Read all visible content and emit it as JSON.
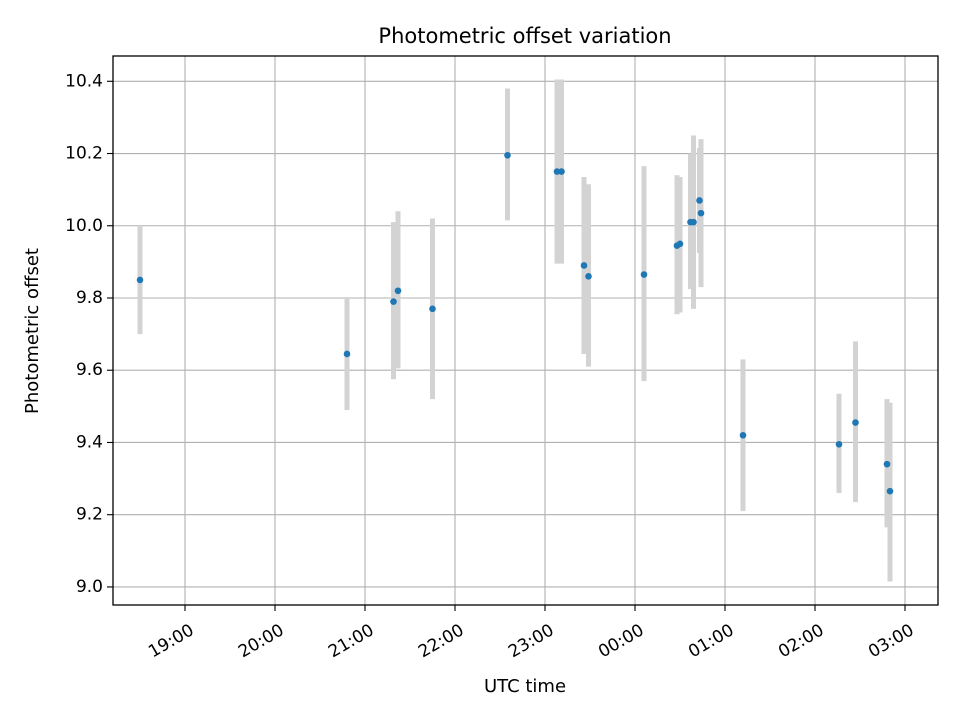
{
  "chart_data": {
    "type": "scatter",
    "title": "Photometric offset variation",
    "xlabel": "UTC time",
    "ylabel": "Photometric offset",
    "grid": true,
    "x_axis": {
      "ticks": [
        "19:00",
        "20:00",
        "21:00",
        "22:00",
        "23:00",
        "00:00",
        "01:00",
        "02:00",
        "03:00"
      ],
      "range": [
        "18:12",
        "03:22"
      ]
    },
    "y_axis": {
      "ticks": [
        "9.0",
        "9.2",
        "9.4",
        "9.6",
        "9.8",
        "10.0",
        "10.2",
        "10.4"
      ],
      "range": [
        8.95,
        10.47
      ]
    },
    "colors": {
      "point": "#1f77b4",
      "errorbar": "#d3d3d3",
      "grid": "#b0b0b0",
      "axes": "#000000"
    },
    "points": [
      {
        "x": "18:30",
        "y": 9.85,
        "ylow": 9.7,
        "yhigh": 10.0
      },
      {
        "x": "20:48",
        "y": 9.645,
        "ylow": 9.49,
        "yhigh": 9.8
      },
      {
        "x": "21:19",
        "y": 9.79,
        "ylow": 9.575,
        "yhigh": 10.01
      },
      {
        "x": "21:22",
        "y": 9.82,
        "ylow": 9.605,
        "yhigh": 10.04
      },
      {
        "x": "21:45",
        "y": 9.77,
        "ylow": 9.52,
        "yhigh": 10.02
      },
      {
        "x": "22:35",
        "y": 10.195,
        "ylow": 10.015,
        "yhigh": 10.38
      },
      {
        "x": "23:08",
        "y": 10.15,
        "ylow": 9.895,
        "yhigh": 10.405
      },
      {
        "x": "23:11",
        "y": 10.15,
        "ylow": 9.895,
        "yhigh": 10.405
      },
      {
        "x": "23:26",
        "y": 9.89,
        "ylow": 9.645,
        "yhigh": 10.135
      },
      {
        "x": "23:29",
        "y": 9.86,
        "ylow": 9.61,
        "yhigh": 10.115
      },
      {
        "x": "00:06",
        "y": 9.865,
        "ylow": 9.57,
        "yhigh": 10.165
      },
      {
        "x": "00:28",
        "y": 9.945,
        "ylow": 9.755,
        "yhigh": 10.14
      },
      {
        "x": "00:30",
        "y": 9.95,
        "ylow": 9.76,
        "yhigh": 10.135
      },
      {
        "x": "00:37",
        "y": 10.01,
        "ylow": 9.825,
        "yhigh": 10.2
      },
      {
        "x": "00:39",
        "y": 10.01,
        "ylow": 9.77,
        "yhigh": 10.25
      },
      {
        "x": "00:43",
        "y": 10.07,
        "ylow": 9.925,
        "yhigh": 10.215
      },
      {
        "x": "00:44",
        "y": 10.035,
        "ylow": 9.83,
        "yhigh": 10.24
      },
      {
        "x": "01:12",
        "y": 9.42,
        "ylow": 9.21,
        "yhigh": 9.63
      },
      {
        "x": "02:16",
        "y": 9.395,
        "ylow": 9.26,
        "yhigh": 9.535
      },
      {
        "x": "02:27",
        "y": 9.455,
        "ylow": 9.235,
        "yhigh": 9.68
      },
      {
        "x": "02:48",
        "y": 9.34,
        "ylow": 9.165,
        "yhigh": 9.52
      },
      {
        "x": "02:50",
        "y": 9.265,
        "ylow": 9.015,
        "yhigh": 9.51
      }
    ]
  }
}
